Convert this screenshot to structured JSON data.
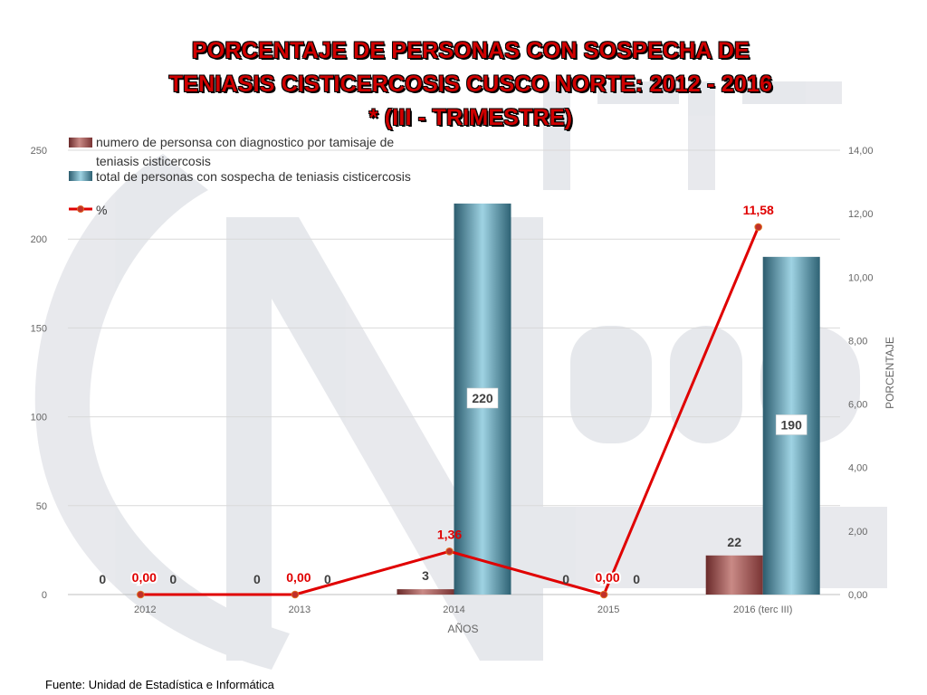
{
  "title": {
    "line1": "PORCENTAJE DE PERSONAS CON SOSPECHA DE",
    "line2": "TENIASIS CISTICERCOSIS CUSCO NORTE: 2012 - 2016",
    "line3": "* (III - TRIMESTRE)"
  },
  "source": "Fuente: Unidad de Estadística e Informática",
  "colors": {
    "title": "#d00000",
    "bar_diag": "#a05050",
    "bar_total": "#5aa6bb",
    "line": "#e00000",
    "marker": "#c0302a",
    "grid": "#d9d9d9"
  },
  "chart_data": {
    "type": "bar",
    "categories": [
      "2012",
      "2013",
      "2014",
      "2015",
      "2016 (terc III)"
    ],
    "xlabel": "AÑOS",
    "ylabel_right": "PORCENTAJE",
    "ylim_left": [
      0,
      250
    ],
    "yticks_left": [
      "0",
      "50",
      "100",
      "150",
      "200",
      "250"
    ],
    "ylim_right": [
      0,
      14
    ],
    "yticks_right": [
      "0,00",
      "2,00",
      "4,00",
      "6,00",
      "8,00",
      "10,00",
      "12,00",
      "14,00"
    ],
    "grid": true,
    "legend_position": "top-left",
    "series": [
      {
        "name": "numero de personsa con diagnostico por tamisaje  de teniasis   cisticercosis",
        "axis": "left",
        "kind": "bar",
        "values": [
          0,
          0,
          3,
          0,
          22
        ],
        "labels": [
          "0",
          "0",
          "3",
          "0",
          "22"
        ]
      },
      {
        "name": "total de personas con sospecha de teniasis cisticercosis",
        "axis": "left",
        "kind": "bar",
        "values": [
          0,
          0,
          220,
          0,
          190
        ],
        "labels": [
          "0",
          "0",
          "220",
          "0",
          "190"
        ]
      },
      {
        "name": "%",
        "axis": "right",
        "kind": "line",
        "values": [
          0.0,
          0.0,
          1.36,
          0.0,
          11.58
        ],
        "labels": [
          "0,00",
          "0,00",
          "1,36",
          "0,00",
          "11,58"
        ]
      }
    ]
  }
}
